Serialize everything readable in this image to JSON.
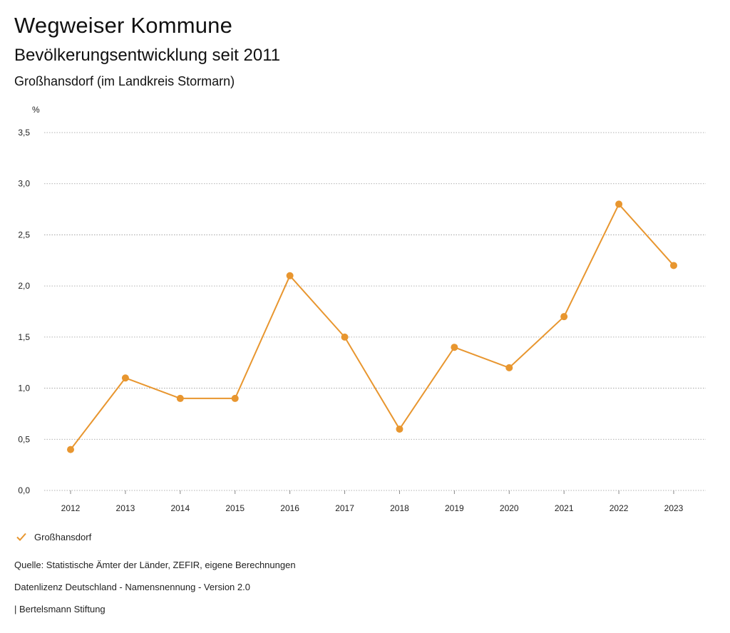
{
  "header": {
    "title": "Wegweiser Kommune",
    "subtitle": "Bevölkerungsentwicklung seit 2011",
    "region": "Großhansdorf (im Landkreis Stormarn)"
  },
  "colors": {
    "series": "#E8962F",
    "grid": "#999999",
    "text": "#111111"
  },
  "chart_data": {
    "type": "line",
    "ylabel": "%",
    "ylim": [
      0,
      3.5
    ],
    "yticks": [
      "0,0",
      "0,5",
      "1,0",
      "1,5",
      "2,0",
      "2,5",
      "3,0",
      "3,5"
    ],
    "ytick_values": [
      0,
      0.5,
      1.0,
      1.5,
      2.0,
      2.5,
      3.0,
      3.5
    ],
    "categories": [
      "2012",
      "2013",
      "2014",
      "2015",
      "2016",
      "2017",
      "2018",
      "2019",
      "2020",
      "2021",
      "2022",
      "2023"
    ],
    "series": [
      {
        "name": "Großhansdorf",
        "values": [
          0.4,
          1.1,
          0.9,
          0.9,
          2.1,
          1.5,
          0.6,
          1.4,
          1.2,
          1.7,
          2.8,
          2.2
        ]
      }
    ],
    "grid": true,
    "legend_position": "bottom-left"
  },
  "legend": {
    "label": "Großhansdorf"
  },
  "footer": {
    "source": "Quelle: Statistische Ämter der Länder, ZEFIR, eigene Berechnungen",
    "license": "Datenlizenz Deutschland - Namensnennung - Version 2.0",
    "publisher": "| Bertelsmann Stiftung"
  }
}
